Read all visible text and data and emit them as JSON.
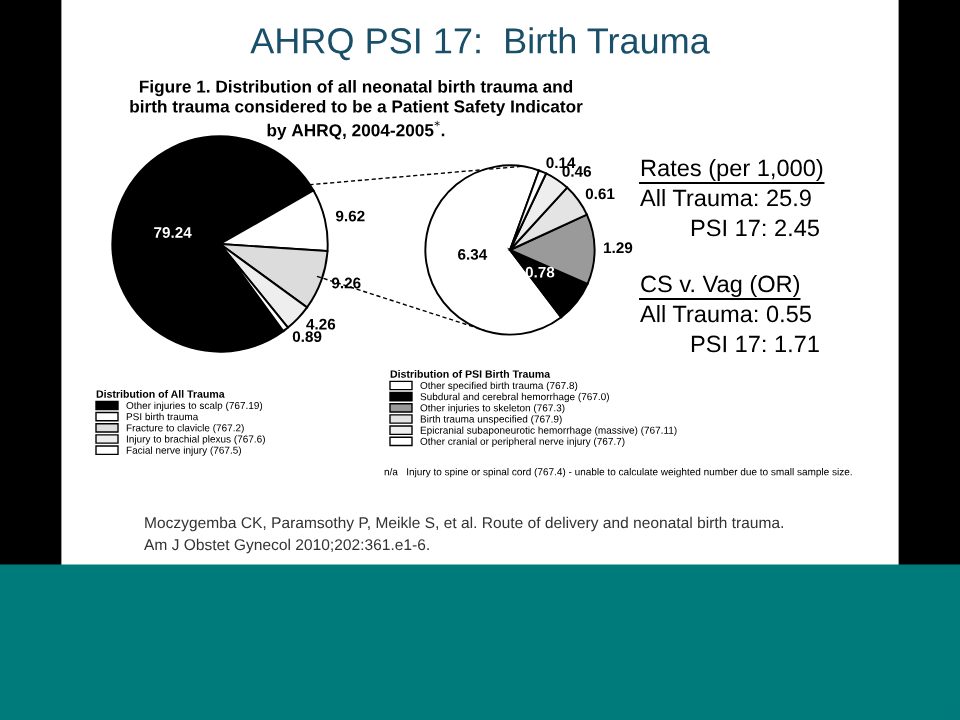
{
  "chart_data": [
    {
      "type": "pie",
      "title": "Figure 1. Distribution of all neonatal birth trauma and birth trauma considered to be a Patient Safety Indicator by AHRQ, 2004-2005$^{*}$.",
      "categories": [
        "Other injuries to scalp (767.19)",
        "PSI birth trauma",
        "Fracture to clavicle (767.2)",
        "Injury to brachial plexus (767.6)",
        "Facial nerve injury (767.5)"
      ],
      "values": [
        79.24,
        9.62,
        9.26,
        4.26,
        0.89
      ],
      "colors": [
        "#000000",
        "#ffffff",
        "#dcdcdc",
        "#eeeeee",
        "#ffffff"
      ],
      "data_labels": true,
      "legend": "bottom",
      "legend_title": "Distribution of All Trauma"
    },
    {
      "type": "pie",
      "categories": [
        "Other specified birth trauma (767.8)",
        "Subdural and cerebral hemorrhage (767.0)",
        "Other injuries to skeleton (767.3)",
        "Birth trauma unspecified (767.9)",
        "Epicranial subaponeurotic hemorrhage (massive) (767.11)",
        "Other cranial or peripheral nerve injury (767.7)"
      ],
      "values": [
        6.34,
        0.78,
        1.29,
        0.61,
        0.46,
        0.14
      ],
      "colors": [
        "#ffffff",
        "#000000",
        "#9a9a9a",
        "#e4e4e4",
        "#eeeeee",
        "#ffffff"
      ],
      "data_labels": true,
      "legend": "bottom",
      "legend_title": "Distribution of PSI Birth Trauma",
      "annotations": [
        "n/a   Injury to spine or spinal cord (767.4) - unable to calculate weighted number due to small sample size."
      ]
    },
    {
      "type": "other",
      "title": "AHRQ PSI 17:  Birth Trauma",
      "annotations": [
        "Rates (per 1,000)",
        "All Trauma: 25.9",
        "PSI 17: 2.45",
        "CS v. Vag (OR)",
        "All Trauma: 0.55",
        "PSI 17: 1.71",
        "Moczygemba CK, Paramsothy P, Meikle S, et al. Route of delivery and neonatal birth trauma.",
        "Am J Obstet Gynecol 2010;202:361.e1-6."
      ]
    }
  ]
}
